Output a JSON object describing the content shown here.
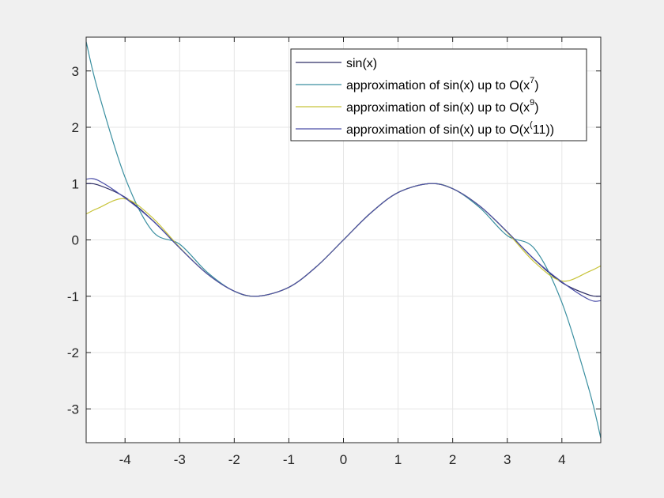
{
  "chart_data": {
    "type": "line",
    "title": "",
    "xlabel": "",
    "ylabel": "",
    "xlim": [
      -4.712,
      4.712
    ],
    "ylim": [
      -3.6,
      3.6
    ],
    "grid": true,
    "legend_position": "top-right",
    "xticks": [
      -4,
      -3,
      -2,
      -1,
      0,
      1,
      2,
      3,
      4
    ],
    "xtick_labels": [
      "-4",
      "-3",
      "-2",
      "-1",
      "0",
      "1",
      "2",
      "3",
      "4"
    ],
    "yticks": [
      -3,
      -2,
      -1,
      0,
      1,
      2,
      3
    ],
    "ytick_labels": [
      "-3",
      "-2",
      "-1",
      "0",
      "1",
      "2",
      "3"
    ],
    "series": [
      {
        "name": "sin(x)",
        "legend_main": "sin(x)",
        "legend_sup": "",
        "legend_tail": "",
        "color": "#2e2e66",
        "x": [
          -4.712,
          -4.5,
          -4.0,
          -3.5,
          -3.0,
          -2.5,
          -2.0,
          -1.571,
          -1.0,
          -0.5,
          0.0,
          0.5,
          1.0,
          1.571,
          2.0,
          2.5,
          3.0,
          3.5,
          4.0,
          4.5,
          4.712
        ],
        "y": [
          1.0,
          0.978,
          0.757,
          0.351,
          -0.141,
          -0.598,
          -0.909,
          -1.0,
          -0.841,
          -0.479,
          0.0,
          0.479,
          0.841,
          1.0,
          0.909,
          0.598,
          0.141,
          -0.351,
          -0.757,
          -0.978,
          -1.0
        ]
      },
      {
        "name": "approximation of sin(x) up to O(x^7)",
        "legend_main": "approximation of sin(x) up to O(x",
        "legend_sup": "7",
        "legend_tail": ")",
        "color": "#3a8fa0",
        "x": [
          -4.712,
          -4.5,
          -4.0,
          -3.5,
          -3.0,
          -2.5,
          -2.0,
          -1.571,
          -1.0,
          -0.5,
          0.0,
          0.5,
          1.0,
          1.571,
          2.0,
          2.5,
          3.0,
          3.5,
          4.0,
          4.5,
          4.712
        ],
        "y": [
          3.52,
          2.667,
          1.111,
          0.158,
          -0.075,
          -0.569,
          -0.911,
          -0.999,
          -0.842,
          -0.479,
          0.0,
          0.479,
          0.842,
          0.999,
          0.911,
          0.569,
          0.075,
          -0.158,
          -1.111,
          -2.667,
          -3.52
        ]
      },
      {
        "name": "approximation of sin(x) up to O(x^9)",
        "legend_main": "approximation of sin(x) up to O(x",
        "legend_sup": "9",
        "legend_tail": ")",
        "color": "#c8c43a",
        "x": [
          -4.712,
          -4.5,
          -4.0,
          -3.5,
          -3.0,
          -2.5,
          -2.0,
          -1.571,
          -1.0,
          -0.5,
          0.0,
          0.5,
          1.0,
          1.571,
          2.0,
          2.5,
          3.0,
          3.5,
          4.0,
          4.5,
          4.712
        ],
        "y": [
          0.46,
          0.56,
          0.73,
          0.396,
          -0.133,
          -0.597,
          -0.909,
          -1.0,
          -0.841,
          -0.479,
          0.0,
          0.479,
          0.841,
          1.0,
          0.909,
          0.597,
          0.133,
          -0.396,
          -0.73,
          -0.56,
          -0.46
        ]
      },
      {
        "name": "approximation of sin(x) up to O(x^(11))",
        "legend_main": "approximation of sin(x) up to O(x",
        "legend_sup": "(",
        "legend_tail": "11))",
        "color": "#4a4ea8",
        "x": [
          -4.712,
          -4.5,
          -4.0,
          -3.5,
          -3.0,
          -2.5,
          -2.0,
          -1.571,
          -1.0,
          -0.5,
          0.0,
          0.5,
          1.0,
          1.571,
          2.0,
          2.5,
          3.0,
          3.5,
          4.0,
          4.5,
          4.712
        ],
        "y": [
          1.08,
          1.06,
          0.745,
          0.346,
          -0.142,
          -0.598,
          -0.909,
          -1.0,
          -0.841,
          -0.479,
          0.0,
          0.479,
          0.841,
          1.0,
          0.909,
          0.598,
          0.142,
          -0.346,
          -0.745,
          -1.06,
          -1.08
        ]
      }
    ]
  }
}
